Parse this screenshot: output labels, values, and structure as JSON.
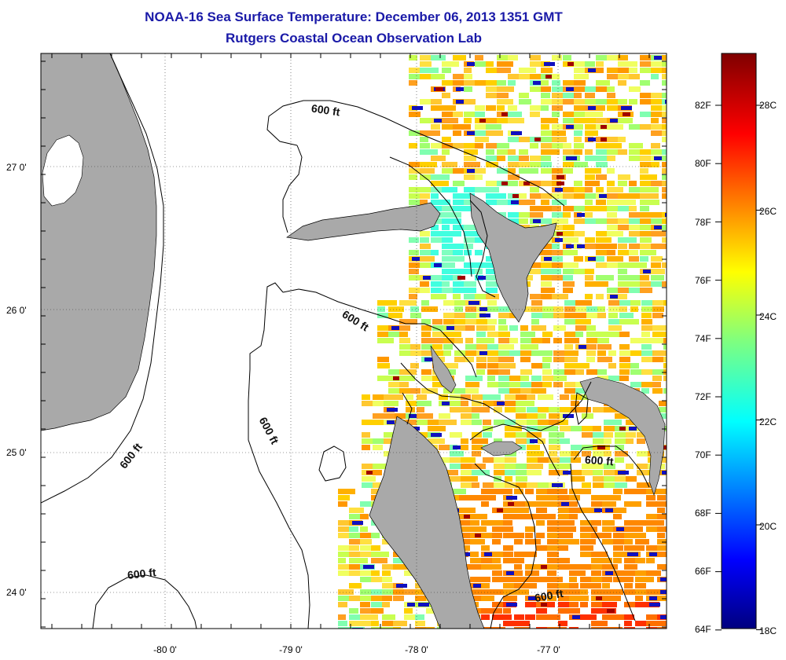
{
  "header": {
    "title": "NOAA-16 Sea Surface Temperature:  December 06, 2013 1351 GMT",
    "subtitle": "Rutgers Coastal Ocean Observation Lab"
  },
  "map": {
    "y_ticks": [
      {
        "label": "27 0'",
        "lat": 27
      },
      {
        "label": "26 0'",
        "lat": 26
      },
      {
        "label": "25 0'",
        "lat": 25
      },
      {
        "label": "24 0'",
        "lat": 24
      }
    ],
    "x_ticks": [
      {
        "label": "-80 0'",
        "lon": -80
      },
      {
        "label": "-79 0'",
        "lon": -79
      },
      {
        "label": "-78 0'",
        "lon": -78
      },
      {
        "label": "-77 0'",
        "lon": -77
      }
    ],
    "contour_labels": [
      "600 ft",
      "600 ft",
      "600 ft",
      "600 ft",
      "600 ft",
      "600 ft",
      "600 ft"
    ],
    "colors": {
      "land": "#a9a9a9",
      "contour": "#000000",
      "title": "#1a1aa8"
    }
  },
  "colorbar": {
    "fahrenheit_labels": [
      "82F",
      "80F",
      "78F",
      "76F",
      "74F",
      "72F",
      "70F",
      "68F",
      "66F",
      "64F"
    ],
    "celsius_labels": [
      "28C",
      "26C",
      "24C",
      "22C",
      "20C",
      "18C"
    ]
  }
}
